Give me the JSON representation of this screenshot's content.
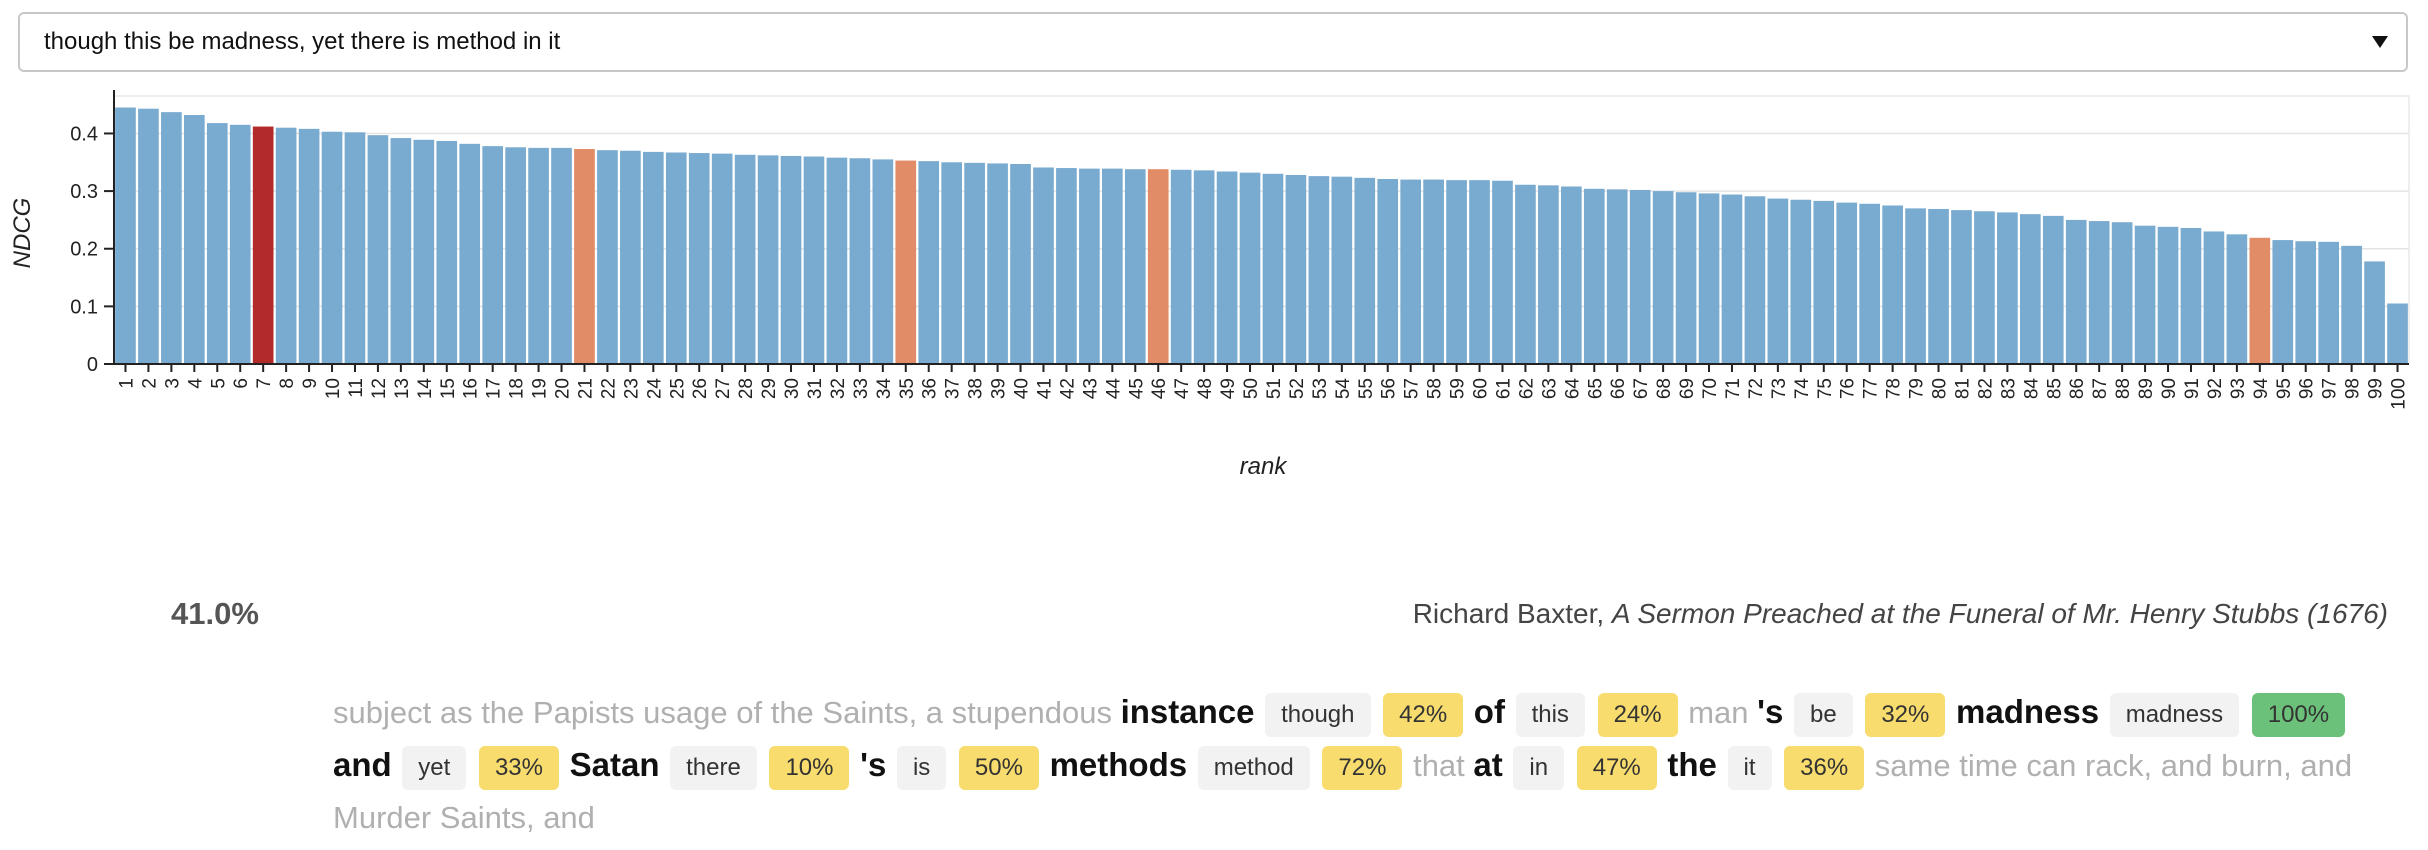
{
  "select": {
    "text": "though this be madness, yet there is method in it"
  },
  "chart_data": {
    "type": "bar",
    "ylabel": "NDCG",
    "xlabel": "rank",
    "categories": [
      1,
      2,
      3,
      4,
      5,
      6,
      7,
      8,
      9,
      10,
      11,
      12,
      13,
      14,
      15,
      16,
      17,
      18,
      19,
      20,
      21,
      22,
      23,
      24,
      25,
      26,
      27,
      28,
      29,
      30,
      31,
      32,
      33,
      34,
      35,
      36,
      37,
      38,
      39,
      40,
      41,
      42,
      43,
      44,
      45,
      46,
      47,
      48,
      49,
      50,
      51,
      52,
      53,
      54,
      55,
      56,
      57,
      58,
      59,
      60,
      61,
      62,
      63,
      64,
      65,
      66,
      67,
      68,
      69,
      70,
      71,
      72,
      73,
      74,
      75,
      76,
      77,
      78,
      79,
      80,
      81,
      82,
      83,
      84,
      85,
      86,
      87,
      88,
      89,
      90,
      91,
      92,
      93,
      94,
      95,
      96,
      97,
      98,
      99,
      100
    ],
    "values": [
      0.445,
      0.443,
      0.437,
      0.432,
      0.418,
      0.415,
      0.412,
      0.41,
      0.408,
      0.403,
      0.402,
      0.397,
      0.392,
      0.389,
      0.387,
      0.382,
      0.378,
      0.376,
      0.375,
      0.375,
      0.373,
      0.371,
      0.37,
      0.368,
      0.367,
      0.366,
      0.365,
      0.363,
      0.362,
      0.361,
      0.36,
      0.358,
      0.357,
      0.355,
      0.353,
      0.352,
      0.35,
      0.349,
      0.348,
      0.347,
      0.341,
      0.34,
      0.339,
      0.339,
      0.338,
      0.338,
      0.337,
      0.336,
      0.334,
      0.332,
      0.33,
      0.328,
      0.326,
      0.325,
      0.323,
      0.321,
      0.32,
      0.32,
      0.319,
      0.319,
      0.318,
      0.311,
      0.31,
      0.308,
      0.304,
      0.303,
      0.302,
      0.3,
      0.298,
      0.296,
      0.294,
      0.291,
      0.287,
      0.285,
      0.283,
      0.28,
      0.278,
      0.275,
      0.27,
      0.269,
      0.267,
      0.265,
      0.263,
      0.26,
      0.257,
      0.25,
      0.248,
      0.246,
      0.24,
      0.238,
      0.236,
      0.23,
      0.225,
      0.219,
      0.215,
      0.213,
      0.212,
      0.205,
      0.178,
      0.105
    ],
    "color": "#79aacf",
    "highlights": [
      {
        "index": 6,
        "color": "#b22a2a"
      },
      {
        "index": 20,
        "color": "#e18c66"
      },
      {
        "index": 34,
        "color": "#e18c66"
      },
      {
        "index": 45,
        "color": "#e18c66"
      },
      {
        "index": 93,
        "color": "#e18c66"
      }
    ],
    "ylim": [
      0,
      0.465
    ],
    "yticks": [
      0,
      0.1,
      0.2,
      0.3,
      0.4
    ],
    "grid": true
  },
  "score": "41.0%",
  "citation": {
    "author": "Richard Baxter,",
    "title": "A Sermon Preached at the Funeral of Mr. Henry Stubbs (1676)"
  },
  "passage": [
    "subject as the Papists usage of the Saints, a stupendous",
    {
      "word": "instance",
      "query": "though",
      "score": "42%",
      "color": "#f8dc6e"
    },
    {
      "word": "of",
      "query": "this",
      "score": "24%",
      "color": "#f8dc6e"
    },
    "man",
    {
      "word": "'s",
      "query": "be",
      "score": "32%",
      "color": "#f8dc6e"
    },
    {
      "word": "madness",
      "query": "madness",
      "score": "100%",
      "color": "#6cc17a"
    },
    {
      "word": "and",
      "query": "yet",
      "score": "33%",
      "color": "#f8dc6e"
    },
    {
      "word": "Satan",
      "query": "there",
      "score": "10%",
      "color": "#f8dc6e"
    },
    {
      "word": "'s",
      "query": "is",
      "score": "50%",
      "color": "#f8dc6e"
    },
    {
      "word": "methods",
      "query": "method",
      "score": "72%",
      "color": "#f8dc6e"
    },
    "that",
    {
      "word": "at",
      "query": "in",
      "score": "47%",
      "color": "#f8dc6e"
    },
    {
      "word": "the",
      "query": "it",
      "score": "36%",
      "color": "#f8dc6e"
    },
    "same time can rack, and burn, and Murder Saints, and"
  ]
}
